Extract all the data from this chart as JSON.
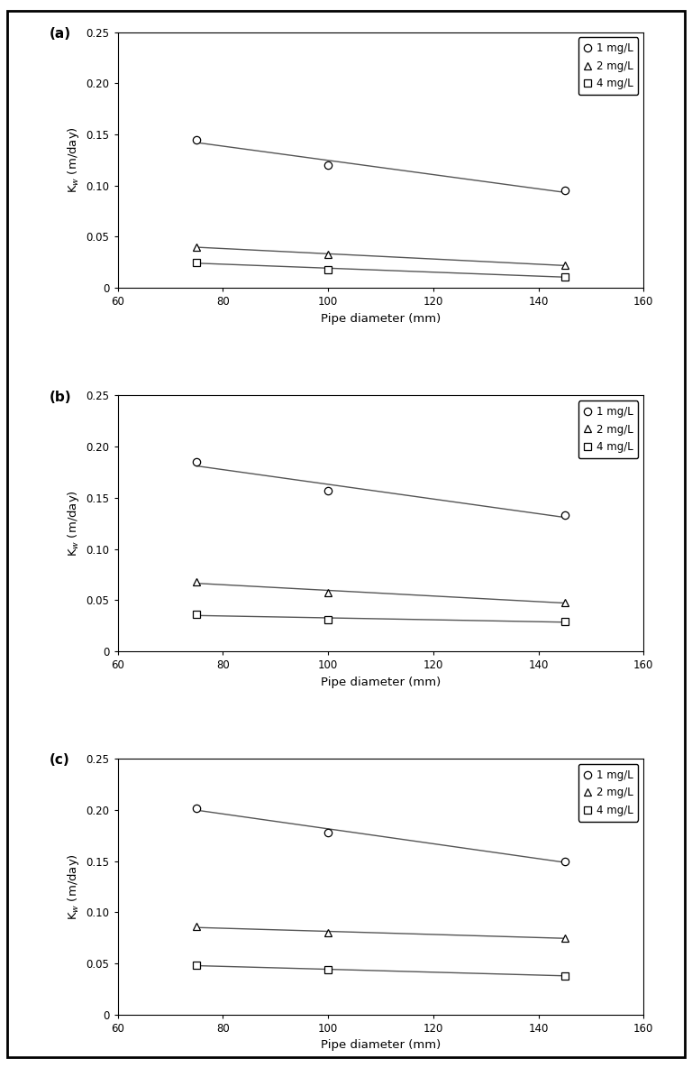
{
  "x": [
    75,
    100,
    145
  ],
  "panels": [
    {
      "label": "(a)",
      "series": [
        {
          "name": "1 mg/L",
          "marker": "o",
          "y": [
            0.145,
            0.12,
            0.095
          ]
        },
        {
          "name": "2 mg/L",
          "marker": "^",
          "y": [
            0.04,
            0.033,
            0.022
          ]
        },
        {
          "name": "4 mg/L",
          "marker": "s",
          "y": [
            0.025,
            0.018,
            0.011
          ]
        }
      ]
    },
    {
      "label": "(b)",
      "series": [
        {
          "name": "1 mg/L",
          "marker": "o",
          "y": [
            0.185,
            0.157,
            0.133
          ]
        },
        {
          "name": "2 mg/L",
          "marker": "^",
          "y": [
            0.068,
            0.057,
            0.048
          ]
        },
        {
          "name": "4 mg/L",
          "marker": "s",
          "y": [
            0.036,
            0.031,
            0.029
          ]
        }
      ]
    },
    {
      "label": "(c)",
      "series": [
        {
          "name": "1 mg/L",
          "marker": "o",
          "y": [
            0.202,
            0.178,
            0.15
          ]
        },
        {
          "name": "2 mg/L",
          "marker": "^",
          "y": [
            0.086,
            0.08,
            0.075
          ]
        },
        {
          "name": "4 mg/L",
          "marker": "s",
          "y": [
            0.048,
            0.044,
            0.038
          ]
        }
      ]
    }
  ],
  "xlabel": "Pipe diameter (mm)",
  "ylabel": "K$_{w}$ (m/day)",
  "xlim": [
    60,
    160
  ],
  "ylim": [
    0,
    0.25
  ],
  "xticks": [
    60,
    80,
    100,
    120,
    140,
    160
  ],
  "yticks": [
    0,
    0.05,
    0.1,
    0.15,
    0.2,
    0.25
  ],
  "ytick_labels": [
    "0",
    "0.05",
    "0.10",
    "0.15",
    "0.20",
    "0.25"
  ],
  "line_color": "#555555",
  "marker_fill": "white",
  "marker_edge_color": "black",
  "marker_size": 6,
  "line_width": 1.0,
  "legend_fontsize": 8.5,
  "axis_fontsize": 9.5,
  "tick_fontsize": 8.5,
  "label_fontsize": 11,
  "background_color": "#ffffff",
  "outer_bg": "#ffffff",
  "border_color": "#000000"
}
